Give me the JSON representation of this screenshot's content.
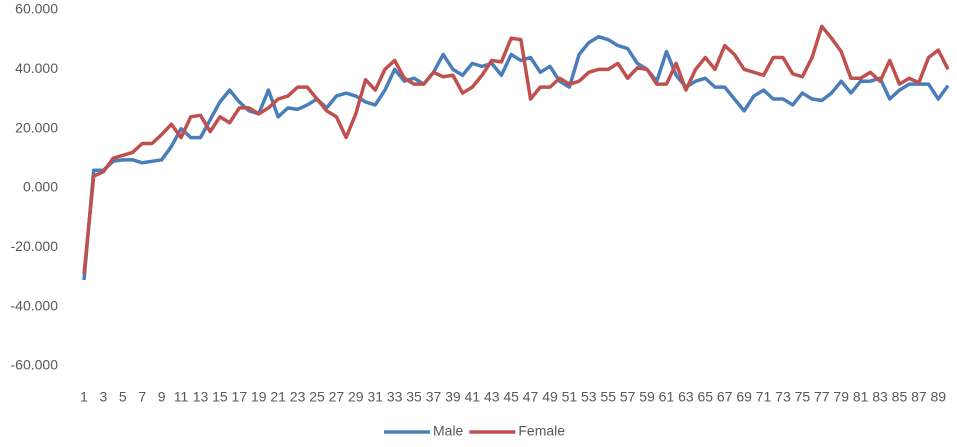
{
  "chart_data": {
    "type": "line",
    "categories": [
      "1",
      null,
      "3",
      null,
      "5",
      null,
      "7",
      null,
      "9",
      null,
      "11",
      null,
      "13",
      null,
      "15",
      null,
      "17",
      null,
      "19",
      null,
      "21",
      null,
      "23",
      null,
      "25",
      null,
      "27",
      null,
      "29",
      null,
      "31",
      null,
      "33",
      null,
      "35",
      null,
      "37",
      null,
      "39",
      null,
      "41",
      null,
      "43",
      null,
      "45",
      null,
      "47",
      null,
      "49",
      null,
      "51",
      null,
      "53",
      null,
      "55",
      null,
      "57",
      null,
      "59",
      null,
      "61",
      null,
      "63",
      null,
      "65",
      null,
      "67",
      null,
      "69",
      null,
      "71",
      null,
      "73",
      null,
      "75",
      null,
      "77",
      null,
      "79",
      null,
      "81",
      null,
      "83",
      null,
      "85",
      null,
      "87",
      null,
      "89",
      null
    ],
    "series": [
      {
        "name": "Male",
        "color": "#4a7ebb",
        "values": [
          -31,
          6,
          6,
          9,
          9.5,
          9.5,
          8.5,
          9,
          9.5,
          14,
          20,
          17,
          17,
          23,
          29,
          33,
          29,
          26,
          25,
          33,
          24,
          27,
          26.5,
          28,
          30,
          27,
          31,
          32,
          31,
          29,
          28,
          33,
          40,
          36,
          37,
          35,
          39,
          45,
          40,
          38,
          42,
          41,
          42,
          38,
          45,
          43,
          44,
          39,
          41,
          36,
          34,
          45,
          49,
          51,
          50,
          48,
          47,
          42,
          40,
          36,
          46,
          38,
          34,
          36,
          37,
          34,
          34,
          30,
          26,
          31,
          33,
          30,
          30,
          28,
          32,
          30,
          29.5,
          32,
          36,
          32,
          36,
          36,
          37,
          30,
          33,
          35,
          35,
          35,
          30,
          34.5
        ]
      },
      {
        "name": "Female",
        "color": "#c0504d",
        "values": [
          -29,
          4,
          5.5,
          10,
          11,
          12,
          15,
          15,
          18,
          21.5,
          17,
          24,
          24.5,
          19,
          24,
          22,
          27,
          27,
          25,
          27,
          30,
          31,
          34,
          34,
          30,
          26,
          24,
          17,
          25,
          36.5,
          33,
          40,
          43,
          37,
          35,
          35,
          39,
          37.5,
          38,
          32,
          34,
          38,
          43,
          42.5,
          50.5,
          50,
          30,
          34,
          34,
          37,
          35,
          36,
          39,
          40,
          40,
          42,
          37,
          40.5,
          40,
          35,
          35,
          42,
          33,
          40,
          44,
          40,
          48,
          45,
          40,
          39,
          38,
          44,
          44,
          38.5,
          37.5,
          44,
          54.5,
          50.5,
          46,
          37,
          37,
          39,
          36,
          43,
          35,
          37,
          35.5,
          44,
          46.5,
          40
        ]
      }
    ],
    "ylim": [
      -60,
      60
    ],
    "yticks": [
      {
        "value": -60,
        "label": "-60.000"
      },
      {
        "value": -40,
        "label": "-40.000"
      },
      {
        "value": -20,
        "label": "-20.000"
      },
      {
        "value": 0,
        "label": "0.000"
      },
      {
        "value": 20,
        "label": "20.000"
      },
      {
        "value": 40,
        "label": "40.000"
      },
      {
        "value": 60,
        "label": "60.000"
      }
    ],
    "grid": false,
    "legend": "bottom"
  }
}
